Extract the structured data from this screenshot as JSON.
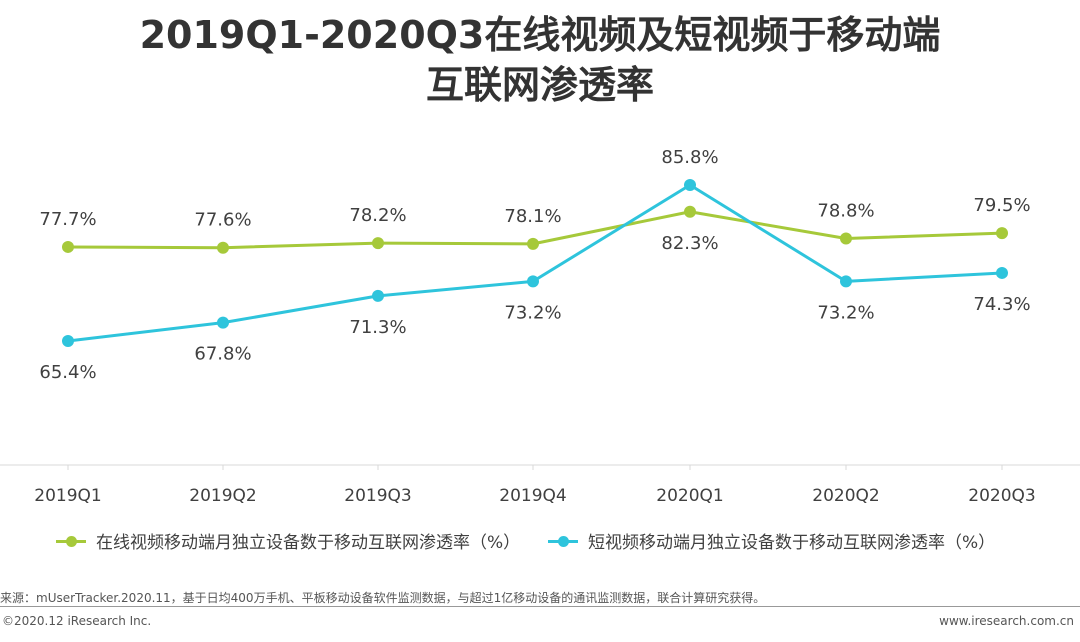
{
  "title_line1": "2019Q1-2020Q3在线视频及短视频于移动端",
  "title_line2": "互联网渗透率",
  "chart_data": {
    "type": "line",
    "title": "2019Q1-2020Q3在线视频及短视频于移动端互联网渗透率",
    "categories": [
      "2019Q1",
      "2019Q2",
      "2019Q3",
      "2019Q4",
      "2020Q1",
      "2020Q2",
      "2020Q3"
    ],
    "ylim": [
      55,
      90
    ],
    "grid": false,
    "legend_position": "bottom",
    "series": [
      {
        "name": "在线视频移动端月独立设备数于移动互联网渗透率（%）",
        "color": "#a6c93a",
        "values": [
          77.7,
          77.6,
          78.2,
          78.1,
          82.3,
          78.8,
          79.5
        ],
        "labels": [
          "77.7%",
          "77.6%",
          "78.2%",
          "78.1%",
          "82.3%",
          "78.8%",
          "79.5%"
        ]
      },
      {
        "name": "短视频移动端月独立设备数于移动互联网渗透率（%）",
        "color": "#2ec4dc",
        "values": [
          65.4,
          67.8,
          71.3,
          73.2,
          85.8,
          73.2,
          74.3
        ],
        "labels": [
          "65.4%",
          "67.8%",
          "71.3%",
          "73.2%",
          "85.8%",
          "73.2%",
          "74.3%"
        ]
      }
    ]
  },
  "source": "来源：mUserTracker.2020.11，基于日均400万手机、平板移动设备软件监测数据，与超过1亿移动设备的通讯监测数据，联合计算研究获得。",
  "copyright": "©2020.12 iResearch Inc.",
  "website": "www.iresearch.com.cn"
}
